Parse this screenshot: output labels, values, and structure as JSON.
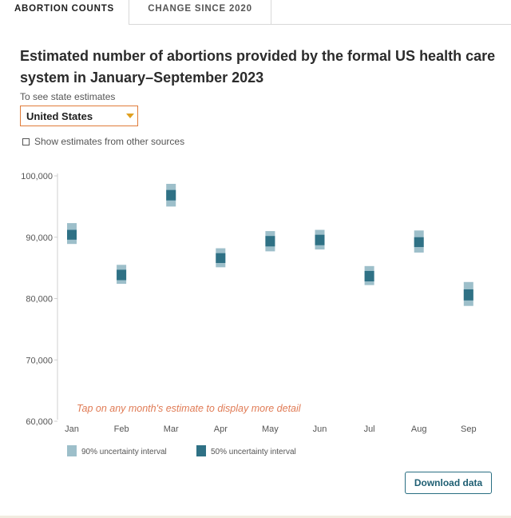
{
  "tabs": [
    {
      "label": "ABORTION COUNTS"
    },
    {
      "label": "CHANGE SINCE 2020"
    }
  ],
  "title": "Estimated number of abortions provided by the formal US health care system in January–September 2023",
  "selector": {
    "label": "To see state estimates",
    "value": "United States"
  },
  "checkbox": {
    "label": "Show estimates from other sources",
    "checked": false
  },
  "chart_data": {
    "type": "interval",
    "title": "Estimated number of abortions provided by the formal US health care system in January–September 2023",
    "ylim": [
      60000,
      100000
    ],
    "yticks": [
      "60,000",
      "70,000",
      "80,000",
      "90,000",
      "100,000"
    ],
    "ytick_values": [
      60000,
      70000,
      80000,
      90000,
      100000
    ],
    "categories": [
      "Jan",
      "Feb",
      "Mar",
      "Apr",
      "May",
      "Jun",
      "Jul",
      "Aug",
      "Sep"
    ],
    "ci90": [
      [
        88900,
        92300
      ],
      [
        82400,
        85500
      ],
      [
        95000,
        98700
      ],
      [
        85100,
        88200
      ],
      [
        87700,
        91000
      ],
      [
        88000,
        91200
      ],
      [
        82200,
        85300
      ],
      [
        87500,
        91100
      ],
      [
        78800,
        82700
      ]
    ],
    "ci50": [
      [
        89600,
        91200
      ],
      [
        83000,
        84700
      ],
      [
        96000,
        97700
      ],
      [
        85800,
        87400
      ],
      [
        88500,
        90200
      ],
      [
        88700,
        90400
      ],
      [
        82800,
        84500
      ],
      [
        88400,
        90000
      ],
      [
        79700,
        81500
      ]
    ],
    "annotation": "Tap on any month's estimate to display more detail",
    "legend": [
      {
        "label": "90% uncertainty interval",
        "color": "#9dbfca"
      },
      {
        "label": "50% uncertainty interval",
        "color": "#2f7185"
      }
    ]
  },
  "download_label": "Download data",
  "colors": {
    "ci90": "#9dbfca",
    "ci50": "#2f7185",
    "annotation": "#e07b55",
    "axis": "#cfcfcf",
    "accent": "#e07b39"
  }
}
